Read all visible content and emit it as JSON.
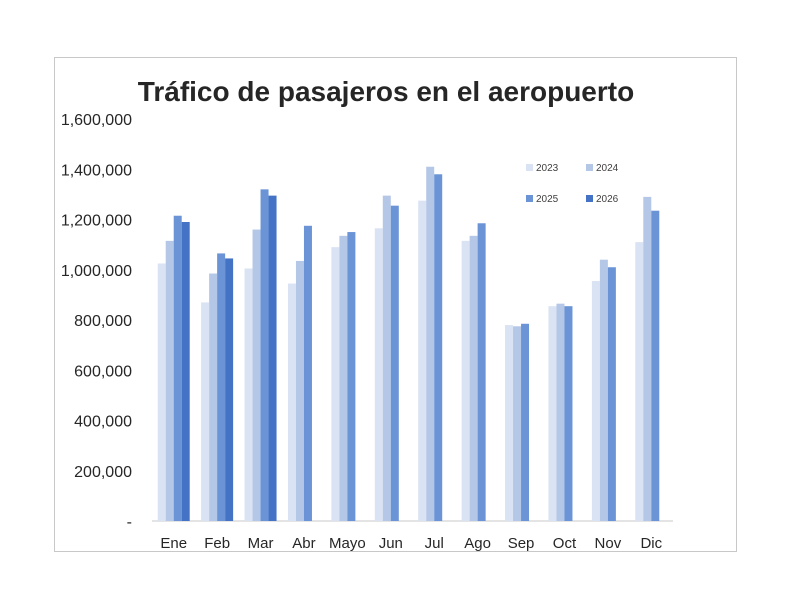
{
  "chart_data": {
    "type": "bar",
    "title": "Tráfico de pasajeros en el aeropuerto",
    "xlabel": "",
    "ylabel": "",
    "categories": [
      "Ene",
      "Feb",
      "Mar",
      "Abr",
      "Mayo",
      "Jun",
      "Jul",
      "Ago",
      "Sep",
      "Oct",
      "Nov",
      "Dic"
    ],
    "ylim": [
      0,
      1600000
    ],
    "yticks": [
      "-",
      "200,000",
      "400,000",
      "600,000",
      "800,000",
      "1,000,000",
      "1,200,000",
      "1,400,000",
      "1,600,000"
    ],
    "ytick_values": [
      0,
      200000,
      400000,
      600000,
      800000,
      1000000,
      1200000,
      1400000,
      1600000
    ],
    "grid": false,
    "legend_position": "top-right",
    "series": [
      {
        "name": "2023",
        "color": "#dae3f3",
        "values": [
          1025000,
          870000,
          1005000,
          945000,
          1090000,
          1165000,
          1275000,
          1115000,
          780000,
          855000,
          955000,
          1110000
        ]
      },
      {
        "name": "2024",
        "color": "#b4c7e7",
        "values": [
          1115000,
          985000,
          1160000,
          1035000,
          1135000,
          1295000,
          1410000,
          1135000,
          775000,
          865000,
          1040000,
          1290000
        ]
      },
      {
        "name": "2025",
        "color": "#6a94d6",
        "values": [
          1215000,
          1065000,
          1320000,
          1175000,
          1150000,
          1255000,
          1380000,
          1185000,
          785000,
          855000,
          1010000,
          1235000
        ]
      },
      {
        "name": "2026",
        "color": "#4472c4",
        "values": [
          1190000,
          1045000,
          1295000,
          null,
          null,
          null,
          null,
          null,
          null,
          null,
          null,
          null
        ]
      }
    ]
  }
}
